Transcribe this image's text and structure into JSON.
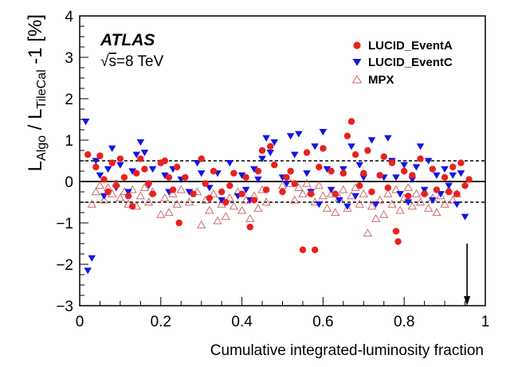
{
  "chart_data": {
    "type": "scatter",
    "title": "",
    "xlabel": "Cumulative integrated-luminosity fraction",
    "ylabel": {
      "main": "L",
      "sub1": "Algo",
      "mid": " / L",
      "sub2": "TileCal",
      "tail": " -1 [%]"
    },
    "xlim": [
      0,
      1
    ],
    "ylim": [
      -3,
      4
    ],
    "xticks": [
      "0",
      "0.2",
      "0.4",
      "0.6",
      "0.8",
      "1"
    ],
    "yticks": [
      "−3",
      "−2",
      "−1",
      "0",
      "1",
      "2",
      "3",
      "4"
    ],
    "experiment_label": "ATLAS",
    "energy_label": {
      "sqrt": "√",
      "s": "s",
      "rest": "=8 TeV"
    },
    "reference_lines": {
      "solid": 0,
      "dashed": [
        0.5,
        -0.5
      ]
    },
    "arrow_marker": {
      "x": 0.955,
      "y_from": -1.5,
      "y_to": -3
    },
    "legend": [
      {
        "label": "LUCID_EventA",
        "marker": "filled-circle",
        "color": "#e8211f"
      },
      {
        "label": "LUCID_EventC",
        "marker": "filled-triangle-down",
        "color": "#1414e6"
      },
      {
        "label": "MPX",
        "marker": "open-triangle-up",
        "color": "#cd6a6a"
      }
    ],
    "series": [
      {
        "name": "LUCID_EventA",
        "points": [
          [
            0.02,
            0.65
          ],
          [
            0.04,
            0.35
          ],
          [
            0.05,
            0.62
          ],
          [
            0.06,
            0.05
          ],
          [
            0.07,
            -0.25
          ],
          [
            0.08,
            0.45
          ],
          [
            0.09,
            -0.1
          ],
          [
            0.1,
            0.55
          ],
          [
            0.11,
            0.1
          ],
          [
            0.12,
            -0.35
          ],
          [
            0.13,
            -0.6
          ],
          [
            0.14,
            0.2
          ],
          [
            0.15,
            0.55
          ],
          [
            0.16,
            0.3
          ],
          [
            0.17,
            -0.05
          ],
          [
            0.18,
            -0.3
          ],
          [
            0.2,
            0.45
          ],
          [
            0.21,
            0.5
          ],
          [
            0.22,
            0.1
          ],
          [
            0.23,
            -0.2
          ],
          [
            0.24,
            0.35
          ],
          [
            0.245,
            -1.0
          ],
          [
            0.26,
            0.1
          ],
          [
            0.28,
            -0.3
          ],
          [
            0.3,
            0.55
          ],
          [
            0.31,
            -0.05
          ],
          [
            0.32,
            -0.4
          ],
          [
            0.33,
            0.25
          ],
          [
            0.35,
            -0.25
          ],
          [
            0.36,
            -0.5
          ],
          [
            0.37,
            -0.1
          ],
          [
            0.38,
            0.2
          ],
          [
            0.4,
            -0.3
          ],
          [
            0.41,
            0.1
          ],
          [
            0.42,
            -1.1
          ],
          [
            0.43,
            -0.45
          ],
          [
            0.44,
            0.25
          ],
          [
            0.45,
            0.75
          ],
          [
            0.46,
            -0.2
          ],
          [
            0.47,
            0.85
          ],
          [
            0.48,
            0.4
          ],
          [
            0.5,
            -0.25
          ],
          [
            0.51,
            0.1
          ],
          [
            0.52,
            0.25
          ],
          [
            0.53,
            -0.05
          ],
          [
            0.55,
            -1.65
          ],
          [
            0.56,
            0.7
          ],
          [
            0.57,
            -0.3
          ],
          [
            0.58,
            -1.65
          ],
          [
            0.59,
            0.35
          ],
          [
            0.6,
            0.8
          ],
          [
            0.62,
            0.25
          ],
          [
            0.63,
            -0.3
          ],
          [
            0.65,
            0.2
          ],
          [
            0.66,
            1.1
          ],
          [
            0.67,
            1.45
          ],
          [
            0.68,
            0.65
          ],
          [
            0.69,
            -0.1
          ],
          [
            0.7,
            0.2
          ],
          [
            0.71,
            0.75
          ],
          [
            0.72,
            -0.25
          ],
          [
            0.74,
            0.15
          ],
          [
            0.75,
            0.6
          ],
          [
            0.76,
            -0.15
          ],
          [
            0.77,
            0.45
          ],
          [
            0.78,
            -1.2
          ],
          [
            0.785,
            -1.45
          ],
          [
            0.8,
            0.25
          ],
          [
            0.81,
            -0.35
          ],
          [
            0.82,
            0.15
          ],
          [
            0.84,
            0.55
          ],
          [
            0.85,
            -0.3
          ],
          [
            0.87,
            0.3
          ],
          [
            0.88,
            -0.2
          ],
          [
            0.9,
            0.1
          ],
          [
            0.91,
            -0.25
          ],
          [
            0.92,
            0.35
          ],
          [
            0.93,
            -0.3
          ],
          [
            0.94,
            0.45
          ],
          [
            0.95,
            -0.1
          ],
          [
            0.96,
            0.05
          ]
        ]
      },
      {
        "name": "LUCID_EventC",
        "points": [
          [
            0.015,
            1.45
          ],
          [
            0.02,
            -2.15
          ],
          [
            0.03,
            -1.85
          ],
          [
            0.04,
            0.5
          ],
          [
            0.05,
            0.15
          ],
          [
            0.06,
            -0.35
          ],
          [
            0.07,
            0.3
          ],
          [
            0.08,
            0.8
          ],
          [
            0.09,
            -0.15
          ],
          [
            0.1,
            0.4
          ],
          [
            0.12,
            -0.25
          ],
          [
            0.13,
            0.25
          ],
          [
            0.14,
            0.65
          ],
          [
            0.15,
            0.95
          ],
          [
            0.16,
            0.7
          ],
          [
            0.17,
            -0.1
          ],
          [
            0.18,
            0.3
          ],
          [
            0.2,
            0.45
          ],
          [
            0.21,
            0.15
          ],
          [
            0.22,
            -0.25
          ],
          [
            0.23,
            0.3
          ],
          [
            0.25,
            0.05
          ],
          [
            0.27,
            -0.25
          ],
          [
            0.29,
            0.45
          ],
          [
            0.3,
            0.2
          ],
          [
            0.32,
            -0.15
          ],
          [
            0.34,
            0.2
          ],
          [
            0.35,
            -0.45
          ],
          [
            0.37,
            0.45
          ],
          [
            0.39,
            -0.35
          ],
          [
            0.4,
            0.15
          ],
          [
            0.41,
            -0.2
          ],
          [
            0.42,
            -0.45
          ],
          [
            0.43,
            0.3
          ],
          [
            0.44,
            0.05
          ],
          [
            0.45,
            0.55
          ],
          [
            0.46,
            1.05
          ],
          [
            0.47,
            0.7
          ],
          [
            0.48,
            0.95
          ],
          [
            0.5,
            0.1
          ],
          [
            0.51,
            -0.05
          ],
          [
            0.52,
            1.1
          ],
          [
            0.53,
            0.65
          ],
          [
            0.54,
            1.15
          ],
          [
            0.56,
            0.2
          ],
          [
            0.57,
            -0.25
          ],
          [
            0.58,
            0.85
          ],
          [
            0.59,
            -0.55
          ],
          [
            0.6,
            1.2
          ],
          [
            0.61,
            0.3
          ],
          [
            0.62,
            -0.2
          ],
          [
            0.64,
            -0.45
          ],
          [
            0.65,
            0.3
          ],
          [
            0.66,
            -0.6
          ],
          [
            0.67,
            0.85
          ],
          [
            0.68,
            -0.35
          ],
          [
            0.69,
            0.4
          ],
          [
            0.7,
            0.1
          ],
          [
            0.72,
            1.0
          ],
          [
            0.73,
            -0.55
          ],
          [
            0.75,
            0.1
          ],
          [
            0.76,
            1.05
          ],
          [
            0.77,
            0.5
          ],
          [
            0.78,
            0.1
          ],
          [
            0.79,
            -0.3
          ],
          [
            0.8,
            0.4
          ],
          [
            0.81,
            -0.5
          ],
          [
            0.82,
            0.05
          ],
          [
            0.83,
            0.35
          ],
          [
            0.84,
            0.85
          ],
          [
            0.85,
            -0.2
          ],
          [
            0.86,
            0.5
          ],
          [
            0.87,
            -0.45
          ],
          [
            0.88,
            0.15
          ],
          [
            0.89,
            -0.3
          ],
          [
            0.9,
            0.3
          ],
          [
            0.91,
            -0.1
          ],
          [
            0.92,
            0.15
          ],
          [
            0.93,
            -0.55
          ],
          [
            0.94,
            0.2
          ],
          [
            0.95,
            -0.85
          ]
        ]
      },
      {
        "name": "MPX",
        "points": [
          [
            0.03,
            -0.55
          ],
          [
            0.04,
            -0.25
          ],
          [
            0.05,
            -0.1
          ],
          [
            0.06,
            -0.45
          ],
          [
            0.07,
            -0.15
          ],
          [
            0.08,
            -0.3
          ],
          [
            0.09,
            -0.05
          ],
          [
            0.1,
            -0.4
          ],
          [
            0.11,
            -0.25
          ],
          [
            0.12,
            -0.55
          ],
          [
            0.13,
            -0.2
          ],
          [
            0.14,
            -0.6
          ],
          [
            0.15,
            -0.35
          ],
          [
            0.16,
            -0.15
          ],
          [
            0.17,
            -0.5
          ],
          [
            0.18,
            -0.25
          ],
          [
            0.2,
            -0.8
          ],
          [
            0.21,
            -0.4
          ],
          [
            0.22,
            -0.75
          ],
          [
            0.23,
            -0.3
          ],
          [
            0.24,
            -0.55
          ],
          [
            0.25,
            -0.2
          ],
          [
            0.27,
            -0.5
          ],
          [
            0.29,
            -0.25
          ],
          [
            0.3,
            -1.05
          ],
          [
            0.31,
            -0.45
          ],
          [
            0.32,
            -0.7
          ],
          [
            0.33,
            -0.3
          ],
          [
            0.34,
            -0.95
          ],
          [
            0.35,
            -0.55
          ],
          [
            0.36,
            -0.85
          ],
          [
            0.37,
            -0.4
          ],
          [
            0.38,
            -0.6
          ],
          [
            0.39,
            -0.25
          ],
          [
            0.4,
            -0.7
          ],
          [
            0.41,
            -0.45
          ],
          [
            0.42,
            -0.9
          ],
          [
            0.43,
            -0.35
          ],
          [
            0.44,
            -0.65
          ],
          [
            0.45,
            -0.2
          ],
          [
            0.46,
            -0.5
          ],
          [
            0.5,
            -0.1
          ],
          [
            0.52,
            -0.05
          ],
          [
            0.53,
            -0.45
          ],
          [
            0.54,
            -0.15
          ],
          [
            0.55,
            -0.3
          ],
          [
            0.56,
            -0.05
          ],
          [
            0.57,
            -0.25
          ],
          [
            0.58,
            -0.5
          ],
          [
            0.59,
            -0.1
          ],
          [
            0.6,
            -0.35
          ],
          [
            0.61,
            -0.65
          ],
          [
            0.62,
            -0.3
          ],
          [
            0.63,
            -0.75
          ],
          [
            0.64,
            -0.4
          ],
          [
            0.65,
            -0.2
          ],
          [
            0.66,
            -0.65
          ],
          [
            0.67,
            -0.35
          ],
          [
            0.68,
            -0.15
          ],
          [
            0.69,
            -0.55
          ],
          [
            0.7,
            -0.3
          ],
          [
            0.71,
            -1.25
          ],
          [
            0.72,
            -0.6
          ],
          [
            0.73,
            -0.9
          ],
          [
            0.74,
            -0.45
          ],
          [
            0.75,
            -0.8
          ],
          [
            0.76,
            -0.3
          ],
          [
            0.77,
            -0.55
          ],
          [
            0.78,
            -0.2
          ],
          [
            0.79,
            -0.7
          ],
          [
            0.8,
            -0.4
          ],
          [
            0.81,
            -0.15
          ],
          [
            0.82,
            -0.6
          ],
          [
            0.83,
            -0.3
          ],
          [
            0.84,
            -0.5
          ],
          [
            0.85,
            -0.25
          ],
          [
            0.86,
            -0.65
          ],
          [
            0.87,
            -0.4
          ],
          [
            0.88,
            -0.75
          ],
          [
            0.89,
            -0.35
          ],
          [
            0.9,
            -0.55
          ],
          [
            0.91,
            -0.2
          ],
          [
            0.92,
            -0.45
          ],
          [
            0.93,
            -0.3
          ]
        ]
      }
    ]
  }
}
